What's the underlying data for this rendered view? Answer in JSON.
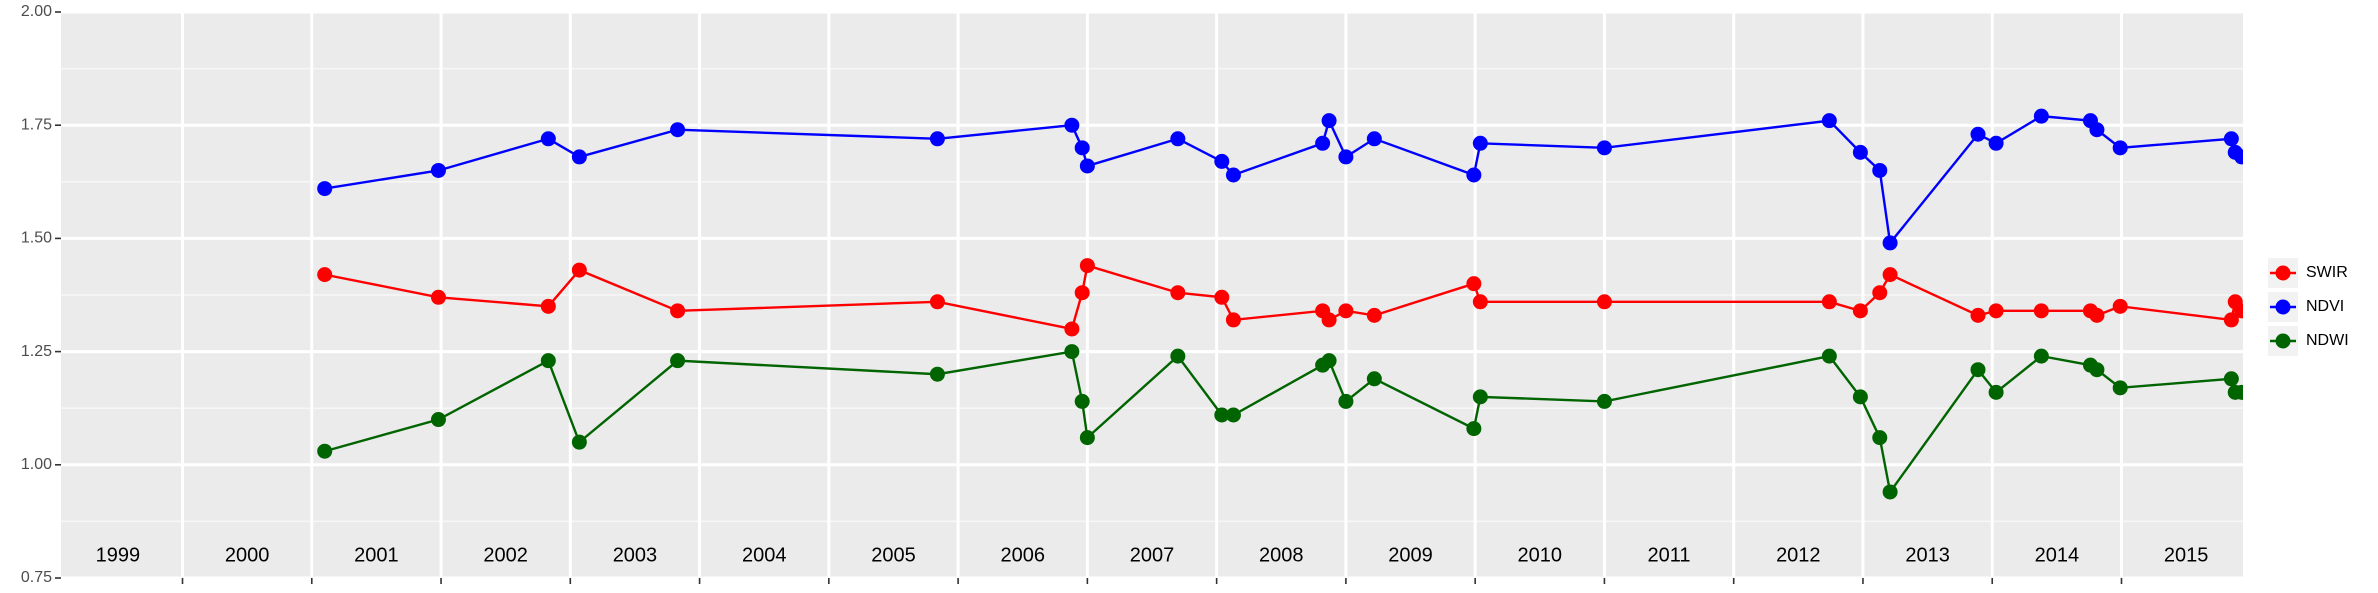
{
  "chart_data": {
    "type": "line",
    "xlim": [
      1999.06,
      2015.94
    ],
    "xticks": [
      2000,
      2001,
      2002,
      2003,
      2004,
      2005,
      2006,
      2007,
      2008,
      2009,
      2010,
      2011,
      2012,
      2013,
      2014,
      2015
    ],
    "year_labels": [
      "1999",
      "2000",
      "2001",
      "2002",
      "2003",
      "2004",
      "2005",
      "2006",
      "2007",
      "2008",
      "2009",
      "2010",
      "2011",
      "2012",
      "2013",
      "2014",
      "2015"
    ],
    "ylim": [
      0.75,
      2.0
    ],
    "yticks": [
      {
        "value": 0.75,
        "label": "0.75"
      },
      {
        "value": 1,
        "label": "1.00"
      },
      {
        "value": 1.25,
        "label": "1.25"
      },
      {
        "value": 1.5,
        "label": "1.50"
      },
      {
        "value": 1.75,
        "label": "1.75"
      },
      {
        "value": 2,
        "label": "2.00"
      }
    ],
    "grid": true,
    "legend_position": "right",
    "x": [
      2001.1,
      2001.98,
      2002.83,
      2003.07,
      2003.83,
      2005.84,
      2006.88,
      2006.96,
      2007.0,
      2007.7,
      2008.04,
      2008.13,
      2008.82,
      2008.87,
      2009.0,
      2009.22,
      2009.99,
      2010.04,
      2011.0,
      2012.74,
      2012.98,
      2013.13,
      2013.21,
      2013.89,
      2014.03,
      2014.38,
      2014.76,
      2014.81,
      2014.99,
      2015.85,
      2015.88,
      2015.93
    ],
    "series": [
      {
        "name": "SWIR",
        "color": "#ff0000",
        "values": [
          1.42,
          1.37,
          1.35,
          1.43,
          1.34,
          1.36,
          1.3,
          1.38,
          1.44,
          1.38,
          1.37,
          1.32,
          1.34,
          1.32,
          1.34,
          1.33,
          1.4,
          1.36,
          1.36,
          1.36,
          1.34,
          1.38,
          1.42,
          1.33,
          1.34,
          1.34,
          1.34,
          1.33,
          1.35,
          1.32,
          1.36,
          1.34
        ]
      },
      {
        "name": "NDVI",
        "color": "#0000ff",
        "values": [
          1.61,
          1.65,
          1.72,
          1.68,
          1.74,
          1.72,
          1.75,
          1.7,
          1.66,
          1.72,
          1.67,
          1.64,
          1.71,
          1.76,
          1.68,
          1.72,
          1.64,
          1.71,
          1.7,
          1.76,
          1.69,
          1.65,
          1.49,
          1.73,
          1.71,
          1.77,
          1.76,
          1.74,
          1.7,
          1.72,
          1.69,
          1.68
        ]
      },
      {
        "name": "NDWI",
        "color": "#006400",
        "values": [
          1.03,
          1.1,
          1.23,
          1.05,
          1.23,
          1.2,
          1.25,
          1.14,
          1.06,
          1.24,
          1.11,
          1.11,
          1.22,
          1.23,
          1.14,
          1.19,
          1.08,
          1.15,
          1.14,
          1.24,
          1.15,
          1.06,
          0.94,
          1.21,
          1.16,
          1.24,
          1.22,
          1.21,
          1.17,
          1.19,
          1.16,
          1.16
        ]
      }
    ]
  }
}
